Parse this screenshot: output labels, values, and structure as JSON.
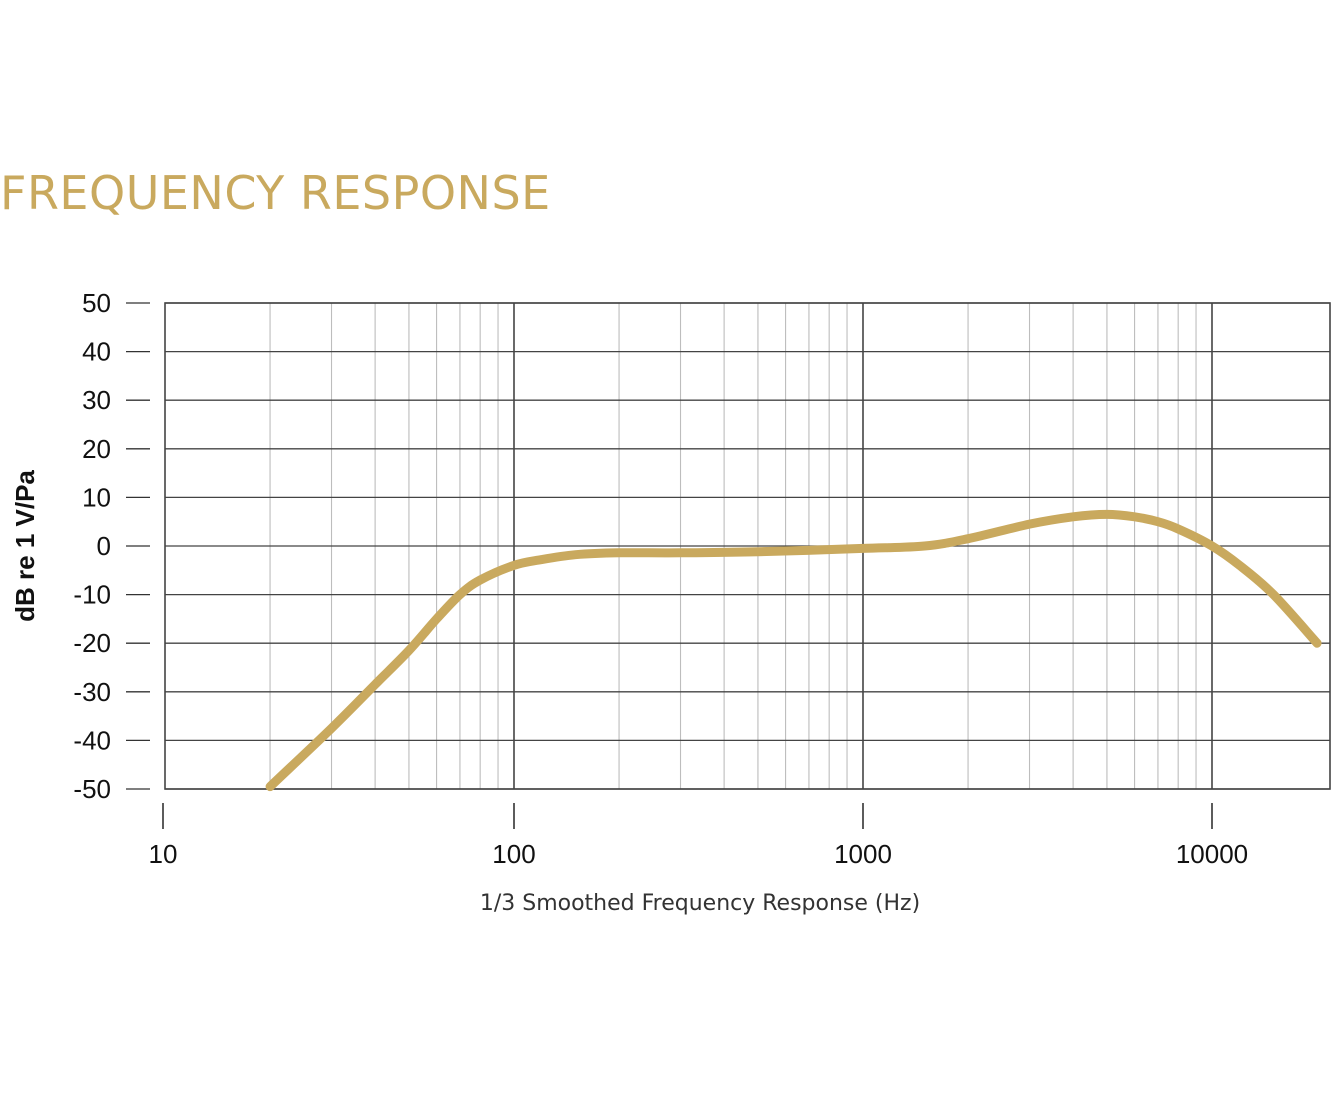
{
  "page": {
    "title": "FREQUENCY RESPONSE"
  },
  "chart_data": {
    "type": "line",
    "title": "",
    "xlabel": "1/3 Smoothed Frequency Response (Hz)",
    "ylabel": "dB re 1 V/Pa",
    "x_scale": "log",
    "xlim": [
      10,
      20000
    ],
    "ylim": [
      -50,
      50
    ],
    "x_ticks": [
      "10",
      "100",
      "1000",
      "10000"
    ],
    "y_ticks": [
      "50",
      "40",
      "30",
      "20",
      "10",
      "0",
      "-10",
      "-20",
      "-30",
      "-40",
      "-50"
    ],
    "grid": true,
    "legend": "none",
    "series": [
      {
        "name": "",
        "color": "#c9a95e",
        "x": [
          20,
          30,
          40,
          50,
          60,
          70,
          80,
          100,
          120,
          150,
          200,
          300,
          500,
          1000,
          1500,
          2000,
          3000,
          4000,
          5000,
          6000,
          7000,
          8000,
          10000,
          12000,
          15000,
          20000
        ],
        "y": [
          -49.5,
          -37.5,
          -28.5,
          -21.5,
          -15,
          -10,
          -7,
          -4,
          -2.8,
          -1.8,
          -1.4,
          -1.4,
          -1.2,
          -0.5,
          0,
          1.5,
          4.5,
          6,
          6.5,
          6,
          5,
          3.5,
          0,
          -4,
          -10,
          -20
        ]
      }
    ]
  }
}
